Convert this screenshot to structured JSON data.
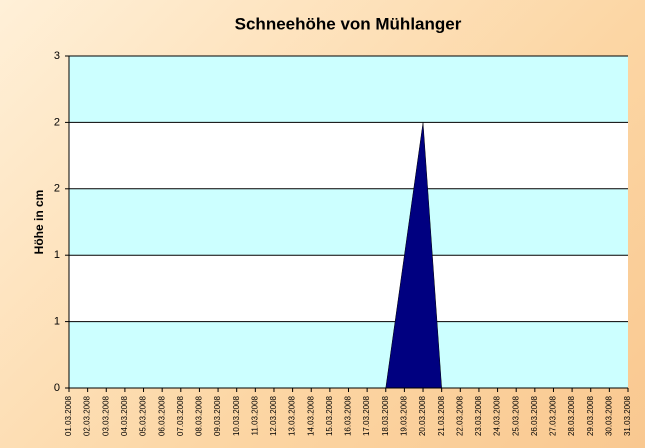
{
  "chart_data": {
    "type": "area",
    "title": "Schneehöhe von Mühlanger",
    "y_label": "Höhe in cm",
    "categories": [
      "01.03.2008",
      "02.03.2008",
      "03.03.2008",
      "04.03.2008",
      "05.03.2008",
      "06.03.2008",
      "07.03.2008",
      "08.03.2008",
      "09.03.2008",
      "10.03.2008",
      "11.03.2008",
      "12.03.2008",
      "13.03.2008",
      "14.03.2008",
      "15.03.2008",
      "16.03.2008",
      "17.03.2008",
      "18.03.2008",
      "19.03.2008",
      "20.03.2008",
      "21.03.2008",
      "22.03.2008",
      "23.03.2008",
      "24.03.2008",
      "25.03.2008",
      "26.03.2008",
      "27.03.2008",
      "28.03.2008",
      "29.03.2008",
      "30.03.2008",
      "31.03.2008"
    ],
    "values": [
      0,
      0,
      0,
      0,
      0,
      0,
      0,
      0,
      0,
      0,
      0,
      0,
      0,
      0,
      0,
      0,
      0,
      0,
      1,
      2,
      0,
      0,
      0,
      0,
      0,
      0,
      0,
      0,
      0,
      0,
      0
    ],
    "color": "#000080",
    "ylim": [
      0,
      2.5
    ],
    "yticks": [
      0,
      {
        "value": 0.5,
        "label": "1"
      },
      1,
      {
        "value": 1.5,
        "label": "2"
      },
      2,
      {
        "value": 2.5,
        "label": "3"
      }
    ],
    "grid": true
  }
}
